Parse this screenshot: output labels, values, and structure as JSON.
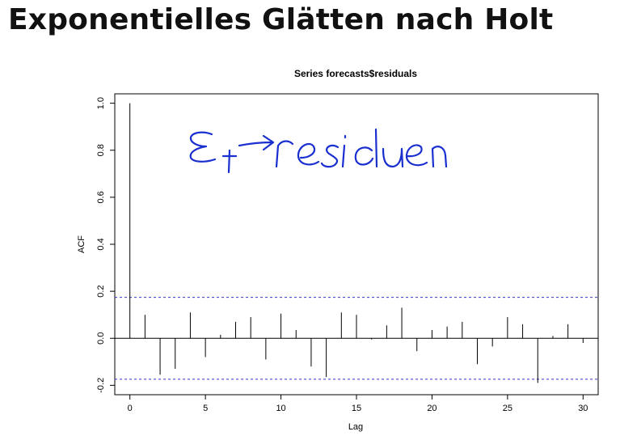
{
  "slide": {
    "title": "Exponentielles Glätten nach Holt"
  },
  "annotation": {
    "handwritten_text": "εt → residuen",
    "color": "#1a2fd0"
  },
  "chart_data": {
    "type": "bar",
    "title": "Series  forecasts$residuals",
    "xlabel": "Lag",
    "ylabel": "ACF",
    "x": [
      0,
      1,
      2,
      3,
      4,
      5,
      6,
      7,
      8,
      9,
      10,
      11,
      12,
      13,
      14,
      15,
      16,
      17,
      18,
      19,
      20,
      21,
      22,
      23,
      24,
      25,
      26,
      27,
      28,
      29,
      30
    ],
    "values": [
      1.0,
      0.1,
      -0.155,
      -0.13,
      0.11,
      -0.08,
      0.015,
      0.07,
      0.09,
      -0.09,
      0.105,
      0.035,
      -0.12,
      -0.165,
      0.11,
      0.1,
      -0.005,
      0.055,
      0.13,
      -0.055,
      0.035,
      0.05,
      0.07,
      -0.11,
      -0.035,
      0.09,
      0.06,
      -0.19,
      0.01,
      0.06,
      -0.02
    ],
    "confidence_band": [
      -0.174,
      0.174
    ],
    "confidence_color": "#3333cc",
    "xlim": [
      -1,
      31
    ],
    "ylim": [
      -0.24,
      1.04
    ],
    "x_ticks": [
      0,
      5,
      10,
      15,
      20,
      25,
      30
    ],
    "y_ticks": [
      -0.2,
      0.0,
      0.2,
      0.4,
      0.6,
      0.8,
      1.0
    ],
    "x_tick_labels": [
      "0",
      "5",
      "10",
      "15",
      "20",
      "25",
      "30"
    ],
    "y_tick_labels": [
      "-0.2",
      "0.0",
      "0.2",
      "0.4",
      "0.6",
      "0.8",
      "1.0"
    ],
    "grid": false
  }
}
